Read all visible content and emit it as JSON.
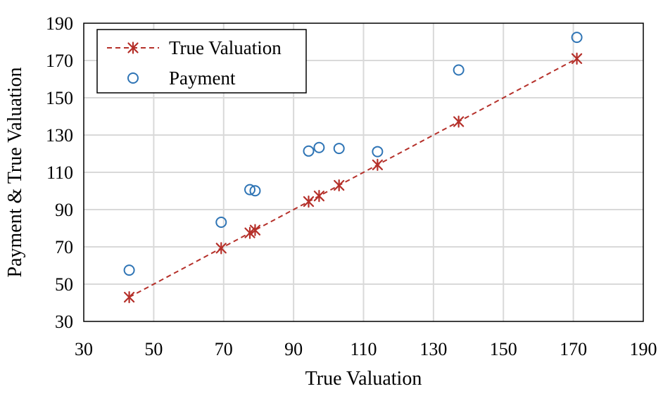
{
  "chart_data": {
    "type": "scatter",
    "title": "",
    "xlabel": "True Valuation",
    "ylabel": "Payment & True Valuation",
    "xlim": [
      30,
      190
    ],
    "ylim": [
      30,
      190
    ],
    "xticks": [
      30,
      50,
      70,
      90,
      110,
      130,
      150,
      170,
      190
    ],
    "yticks": [
      30,
      50,
      70,
      90,
      110,
      130,
      150,
      170,
      190
    ],
    "grid": true,
    "legend_position": "top-left",
    "series": [
      {
        "name": "True Valuation",
        "marker": "asterisk",
        "line": "dashed",
        "color": "#b5302a",
        "x": [
          43,
          69.3,
          77.5,
          79,
          94.3,
          97.3,
          103,
          114,
          137.2,
          171
        ],
        "y": [
          43,
          69.3,
          77.5,
          79,
          94.3,
          97.3,
          103,
          114,
          137.2,
          171
        ]
      },
      {
        "name": "Payment",
        "marker": "circle",
        "line": "none",
        "color": "#2e74b5",
        "x": [
          43,
          69.3,
          77.5,
          79,
          94.3,
          97.3,
          103,
          114,
          137.2,
          171
        ],
        "y": [
          57.5,
          83.2,
          100.7,
          100.1,
          121.4,
          123.3,
          122.8,
          121.1,
          164.9,
          182.4
        ]
      }
    ]
  }
}
